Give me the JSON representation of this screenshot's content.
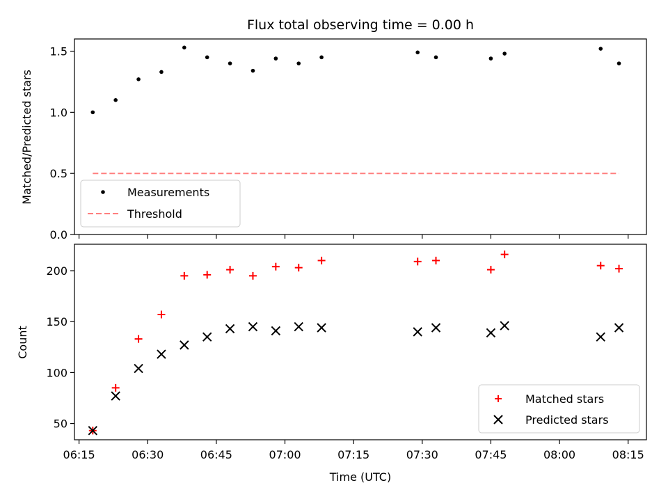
{
  "chart_data": [
    {
      "type": "scatter",
      "title": "Flux total observing time = 0.00 h",
      "xlabel": "",
      "ylabel": "Matched/Predicted stars",
      "ylim": [
        0,
        1.6
      ],
      "yticks": [
        "0.0",
        "0.5",
        "1.0",
        "1.5"
      ],
      "legend_position": "lower-left",
      "grid": false,
      "series": [
        {
          "name": "Measurements",
          "marker": "dot",
          "color": "#000000",
          "x": [
            "06:18",
            "06:23",
            "06:28",
            "06:33",
            "06:38",
            "06:43",
            "06:48",
            "06:53",
            "06:58",
            "07:03",
            "07:08",
            "07:29",
            "07:33",
            "07:45",
            "07:48",
            "08:09",
            "08:13"
          ],
          "y": [
            1.0,
            1.1,
            1.27,
            1.33,
            1.53,
            1.45,
            1.4,
            1.34,
            1.44,
            1.4,
            1.45,
            1.49,
            1.45,
            1.44,
            1.48,
            1.52,
            1.4
          ]
        },
        {
          "name": "Threshold",
          "marker": "dashed-line",
          "color": "#ff7f7f",
          "x": [
            "06:18",
            "08:13"
          ],
          "y": [
            0.5,
            0.5
          ]
        }
      ]
    },
    {
      "type": "scatter",
      "title": "",
      "xlabel": "Time (UTC)",
      "ylabel": "Count",
      "ylim": [
        34,
        226
      ],
      "yticks": [
        "50",
        "100",
        "150",
        "200"
      ],
      "xticks": [
        "06:15",
        "06:30",
        "06:45",
        "07:00",
        "07:15",
        "07:30",
        "07:45",
        "08:00",
        "08:15"
      ],
      "xlim": [
        "06:14",
        "08:19"
      ],
      "legend_position": "lower-right",
      "grid": false,
      "series": [
        {
          "name": "Matched stars",
          "marker": "plus",
          "color": "#ff0000",
          "x": [
            "06:18",
            "06:23",
            "06:28",
            "06:33",
            "06:38",
            "06:43",
            "06:48",
            "06:53",
            "06:58",
            "07:03",
            "07:08",
            "07:29",
            "07:33",
            "07:45",
            "07:48",
            "08:09",
            "08:13"
          ],
          "y": [
            43,
            85,
            133,
            157,
            195,
            196,
            201,
            195,
            204,
            203,
            210,
            209,
            210,
            201,
            216,
            205,
            202
          ]
        },
        {
          "name": "Predicted stars",
          "marker": "x",
          "color": "#000000",
          "x": [
            "06:18",
            "06:23",
            "06:28",
            "06:33",
            "06:38",
            "06:43",
            "06:48",
            "06:53",
            "06:58",
            "07:03",
            "07:08",
            "07:29",
            "07:33",
            "07:45",
            "07:48",
            "08:09",
            "08:13"
          ],
          "y": [
            43,
            77,
            104,
            118,
            127,
            135,
            143,
            145,
            141,
            145,
            144,
            140,
            144,
            139,
            146,
            135,
            144
          ]
        }
      ]
    }
  ]
}
